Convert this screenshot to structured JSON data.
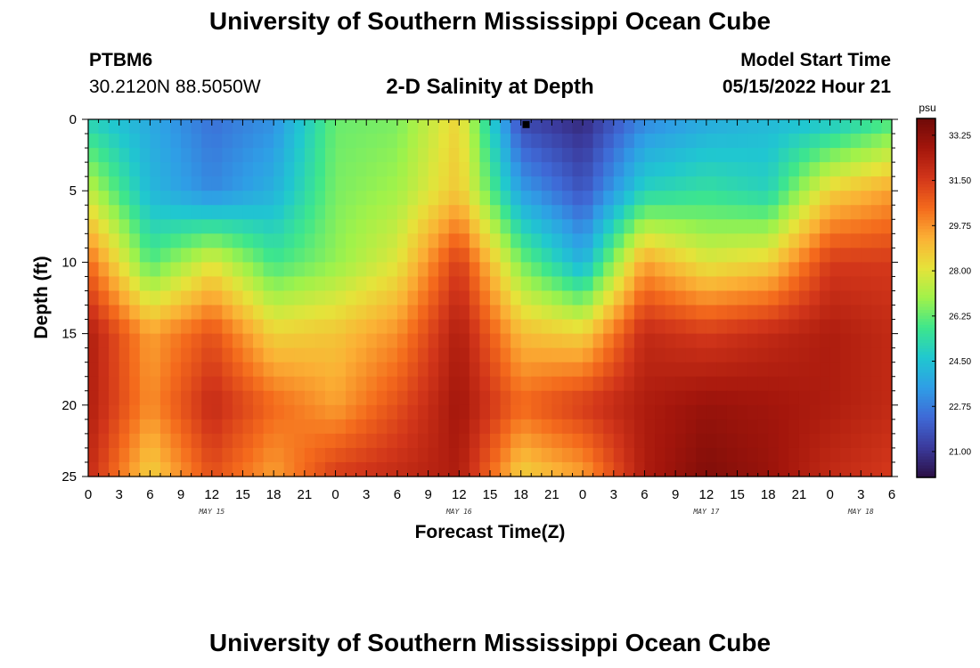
{
  "header": {
    "title": "University of Southern Mississippi Ocean Cube",
    "station_id": "PTBM6",
    "station_coords": "30.2120N  88.5050W",
    "subtitle": "2-D Salinity at Depth",
    "model_start_label": "Model Start Time",
    "model_start_value": "05/15/2022 Hour 21"
  },
  "footer": {
    "title": "University of Southern Mississippi Ocean Cube"
  },
  "chart_data": {
    "type": "heatmap",
    "title": "2-D Salinity at Depth",
    "xlabel": "Forecast Time(Z)",
    "ylabel": "Depth (ft)",
    "ylim": [
      0,
      25
    ],
    "y_ticks": [
      0,
      5,
      10,
      15,
      20,
      25
    ],
    "x_range_hours": [
      0,
      78
    ],
    "x_tick_labels": [
      "0",
      "3",
      "6",
      "9",
      "12",
      "15",
      "18",
      "21",
      "0",
      "3",
      "6",
      "9",
      "12",
      "15",
      "18",
      "21",
      "0",
      "3",
      "6",
      "9",
      "12",
      "15",
      "18",
      "21",
      "0",
      "3",
      "6"
    ],
    "date_labels": [
      {
        "label": "MAY 15",
        "hour": 12
      },
      {
        "label": "MAY 16",
        "hour": 36
      },
      {
        "label": "MAY 17",
        "hour": 60
      },
      {
        "label": "MAY 18",
        "hour": 75
      }
    ],
    "colorbar": {
      "unit": "psu",
      "min": 20.0,
      "max": 33.9,
      "ticks": [
        "33.25",
        "31.50",
        "29.75",
        "28.00",
        "26.25",
        "24.50",
        "22.75",
        "21.00"
      ],
      "colors": [
        "#2a0f44",
        "#3b3a9c",
        "#3f69d6",
        "#2f9ee6",
        "#20c7d0",
        "#3ee68c",
        "#a0f24a",
        "#e6e33a",
        "#fbb035",
        "#f46a1c",
        "#d2361a",
        "#a4160c",
        "#6e0a08"
      ]
    },
    "salinity_grid": {
      "rows_depth_ft": [
        0,
        5,
        10,
        15,
        20,
        25
      ],
      "cols_hour": [
        0,
        6,
        12,
        18,
        24,
        30,
        36,
        42,
        48,
        54,
        60,
        66,
        72,
        78
      ],
      "values_psu": [
        [
          25.0,
          23.8,
          22.5,
          23.2,
          26.3,
          26.5,
          28.5,
          21.5,
          20.7,
          23.0,
          23.8,
          24.2,
          24.5,
          25.8
        ],
        [
          27.5,
          24.2,
          23.0,
          24.0,
          26.5,
          27.0,
          28.8,
          23.5,
          21.8,
          25.0,
          25.5,
          25.0,
          28.5,
          29.5
        ],
        [
          30.5,
          26.0,
          28.0,
          25.8,
          26.8,
          28.0,
          31.5,
          26.5,
          24.0,
          29.5,
          28.0,
          28.5,
          31.5,
          31.5
        ],
        [
          32.5,
          29.5,
          31.0,
          28.5,
          28.8,
          29.8,
          32.5,
          29.0,
          28.5,
          32.0,
          31.5,
          32.0,
          32.5,
          32.0
        ],
        [
          32.5,
          29.8,
          32.0,
          30.5,
          29.5,
          31.0,
          32.8,
          30.5,
          31.5,
          32.5,
          33.0,
          32.8,
          32.5,
          32.0
        ],
        [
          32.0,
          28.5,
          31.0,
          29.5,
          31.5,
          32.0,
          32.5,
          28.5,
          29.5,
          32.5,
          33.5,
          33.0,
          32.0,
          31.5
        ]
      ]
    },
    "marker": {
      "hour": 42.5,
      "depth_ft": 0.3
    }
  }
}
